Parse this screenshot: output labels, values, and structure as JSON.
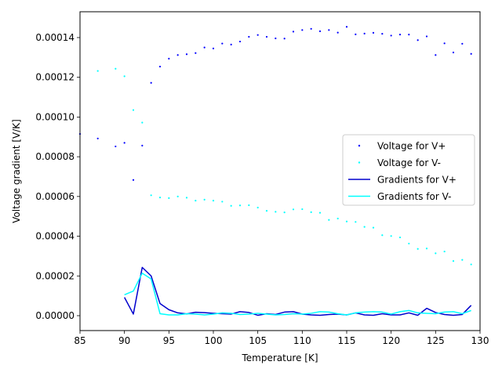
{
  "chart_data": {
    "type": "scatter",
    "title": "",
    "xlabel": "Temperature [K]",
    "ylabel": "Voltage gradient [V/K]",
    "xlim": [
      85,
      130
    ],
    "ylim": [
      -7.5e-06,
      0.000153
    ],
    "xticks": [
      85,
      90,
      95,
      100,
      105,
      110,
      115,
      120,
      125,
      130
    ],
    "xtick_labels": [
      "85",
      "90",
      "95",
      "100",
      "105",
      "110",
      "115",
      "120",
      "125",
      "130"
    ],
    "yticks": [
      0,
      2e-05,
      4e-05,
      6e-05,
      8e-05,
      0.0001,
      0.00012,
      0.00014
    ],
    "ytick_labels": [
      "0.00000",
      "0.00002",
      "0.00004",
      "0.00006",
      "0.00008",
      "0.00010",
      "0.00012",
      "0.00014"
    ],
    "grid": false,
    "legend_position": "center-right",
    "series": [
      {
        "name": "Voltage for V+",
        "kind": "scatter",
        "color": "#0000ff",
        "x": [
          85,
          87,
          89,
          90,
          91,
          92,
          93,
          94,
          95,
          96,
          97,
          98,
          99,
          100,
          101,
          102,
          103,
          104,
          105,
          106,
          107,
          108,
          109,
          110,
          111,
          112,
          113,
          114,
          115,
          116,
          117,
          118,
          119,
          120,
          121,
          122,
          123,
          124,
          125,
          126,
          127,
          128,
          129
        ],
        "y": [
          9.15e-05,
          8.92e-05,
          8.52e-05,
          8.7e-05,
          6.83e-05,
          8.56e-05,
          0.0001172,
          0.0001254,
          0.0001294,
          0.0001312,
          0.0001316,
          0.0001322,
          0.000135,
          0.0001345,
          0.000137,
          0.0001365,
          0.000138,
          0.0001404,
          0.0001413,
          0.0001404,
          0.0001396,
          0.0001395,
          0.000143,
          0.0001438,
          0.0001444,
          0.0001432,
          0.0001438,
          0.0001425,
          0.0001454,
          0.0001416,
          0.000142,
          0.0001424,
          0.0001419,
          0.000141,
          0.0001415,
          0.0001415,
          0.0001387,
          0.0001406,
          0.0001312,
          0.0001371,
          0.0001325,
          0.0001369,
          0.0001318
        ]
      },
      {
        "name": "Voltage for V-",
        "kind": "scatter",
        "color": "#00ffff",
        "x": [
          87,
          89,
          90,
          91,
          92,
          93,
          94,
          95,
          96,
          97,
          98,
          99,
          100,
          101,
          102,
          103,
          104,
          105,
          106,
          107,
          108,
          109,
          110,
          111,
          112,
          113,
          114,
          115,
          116,
          117,
          118,
          119,
          120,
          121,
          122,
          123,
          124,
          125,
          126,
          127,
          128,
          129
        ],
        "y": [
          0.0001232,
          0.0001243,
          0.0001205,
          0.0001035,
          9.72e-05,
          6.06e-05,
          5.95e-05,
          5.92e-05,
          6e-05,
          5.94e-05,
          5.79e-05,
          5.84e-05,
          5.79e-05,
          5.74e-05,
          5.53e-05,
          5.55e-05,
          5.56e-05,
          5.44e-05,
          5.28e-05,
          5.23e-05,
          5.2e-05,
          5.35e-05,
          5.36e-05,
          5.21e-05,
          5.18e-05,
          4.82e-05,
          4.89e-05,
          4.74e-05,
          4.72e-05,
          4.47e-05,
          4.43e-05,
          4.05e-05,
          4.01e-05,
          3.94e-05,
          3.63e-05,
          3.36e-05,
          3.38e-05,
          3.14e-05,
          3.23e-05,
          2.75e-05,
          2.81e-05,
          2.58e-05
        ]
      },
      {
        "name": "Gradients for V+",
        "kind": "line",
        "color": "#0000cd",
        "x": [
          90,
          91,
          92,
          93,
          94,
          95,
          96,
          97,
          98,
          99,
          100,
          101,
          102,
          103,
          104,
          105,
          106,
          107,
          108,
          109,
          110,
          111,
          112,
          113,
          114,
          115,
          116,
          117,
          118,
          119,
          120,
          121,
          122,
          123,
          124,
          125,
          126,
          127,
          128,
          129
        ],
        "y": [
          9.2e-06,
          8e-07,
          2.43e-05,
          2e-05,
          6.1e-06,
          3e-06,
          1.4e-06,
          9e-07,
          1.7e-06,
          1.5e-06,
          1.2e-06,
          1e-06,
          8e-07,
          2e-06,
          1.6e-06,
          2e-07,
          1e-06,
          6e-07,
          1.8e-06,
          2e-06,
          8e-07,
          4e-07,
          2e-07,
          6e-07,
          8e-07,
          4e-07,
          1.4e-06,
          4e-07,
          2e-07,
          1e-06,
          4e-07,
          4e-07,
          1.4e-06,
          2e-07,
          3.7e-06,
          1.6e-06,
          6e-07,
          2e-07,
          6e-07,
          5.2e-06
        ]
      },
      {
        "name": "Gradients for V-",
        "kind": "line",
        "color": "#00ffff",
        "x": [
          90,
          91,
          92,
          93,
          94,
          95,
          96,
          97,
          98,
          99,
          100,
          101,
          102,
          103,
          104,
          105,
          106,
          107,
          108,
          109,
          110,
          111,
          112,
          113,
          114,
          115,
          116,
          117,
          118,
          119,
          120,
          121,
          122,
          123,
          124,
          125,
          126,
          127,
          128,
          129
        ],
        "y": [
          1.05e-05,
          1.24e-05,
          2.14e-05,
          1.85e-05,
          1e-06,
          4e-07,
          4e-07,
          1e-06,
          8e-07,
          4e-07,
          8e-07,
          1.4e-06,
          1.2e-06,
          6e-07,
          8e-07,
          1.2e-06,
          8e-07,
          4e-07,
          6e-07,
          1e-06,
          8e-07,
          1.2e-06,
          2e-06,
          1.8e-06,
          1e-06,
          4e-07,
          1.4e-06,
          1.8e-06,
          2e-06,
          1.8e-06,
          8e-07,
          2e-06,
          2.6e-06,
          1.4e-06,
          1.2e-06,
          1e-06,
          1.8e-06,
          2e-06,
          1e-06,
          2.6e-06
        ]
      }
    ]
  }
}
